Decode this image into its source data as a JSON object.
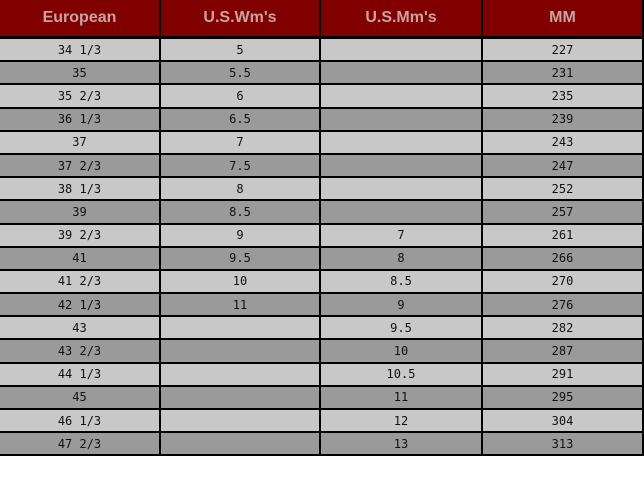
{
  "headers": [
    "European",
    "U.S.Wm's",
    "U.S.Mm's",
    "MM"
  ],
  "rows": [
    [
      "34 1/3",
      "5",
      "",
      "227"
    ],
    [
      "35",
      "5.5",
      "",
      "231"
    ],
    [
      "35 2/3",
      "6",
      "",
      "235"
    ],
    [
      "36 1/3",
      "6.5",
      "",
      "239"
    ],
    [
      "37",
      "7",
      "",
      "243"
    ],
    [
      "37 2/3",
      "7.5",
      "",
      "247"
    ],
    [
      "38 1/3",
      "8",
      "",
      "252"
    ],
    [
      "39",
      "8.5",
      "",
      "257"
    ],
    [
      "39 2/3",
      "9",
      "7",
      "261"
    ],
    [
      "41",
      "9.5",
      "8",
      "266"
    ],
    [
      "41 2/3",
      "10",
      "8.5",
      "270"
    ],
    [
      "42 1/3",
      "11",
      "9",
      "276"
    ],
    [
      "43",
      "",
      "9.5",
      "282"
    ],
    [
      "43 2/3",
      "",
      "10",
      "287"
    ],
    [
      "44 1/3",
      "",
      "10.5",
      "291"
    ],
    [
      "45",
      "",
      "11",
      "295"
    ],
    [
      "46 1/3",
      "",
      "12",
      "304"
    ],
    [
      "47 2/3",
      "",
      "13",
      "313"
    ]
  ],
  "colors": {
    "header_bg": "#800000",
    "header_text": "#c9a3a3",
    "row_light": "#c8c8c8",
    "row_dark": "#9a9a9a"
  }
}
